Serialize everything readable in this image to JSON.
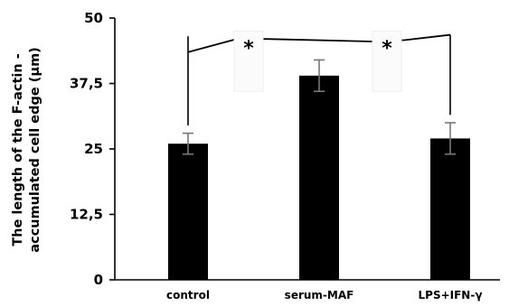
{
  "chart_data": {
    "type": "bar",
    "title": "",
    "ylabel_lines": [
      "The length of the F-actin -",
      "accumulated cell edge (µm)"
    ],
    "xlabel": "",
    "categories": [
      "control",
      "serum-MAF",
      "LPS+IFN-γ"
    ],
    "values": [
      26,
      39,
      27
    ],
    "errors": [
      2,
      3,
      3
    ],
    "ylim": [
      0,
      50
    ],
    "yticks": [
      0,
      12.5,
      25,
      37.5,
      50
    ],
    "ytick_labels": [
      "0",
      "12,5",
      "25",
      "37,5",
      "50"
    ],
    "bar_color": "#000000",
    "grid": false,
    "significance": [
      {
        "from": 0,
        "to": 1,
        "label": "*"
      },
      {
        "from": 1,
        "to": 2,
        "label": "*"
      }
    ]
  }
}
